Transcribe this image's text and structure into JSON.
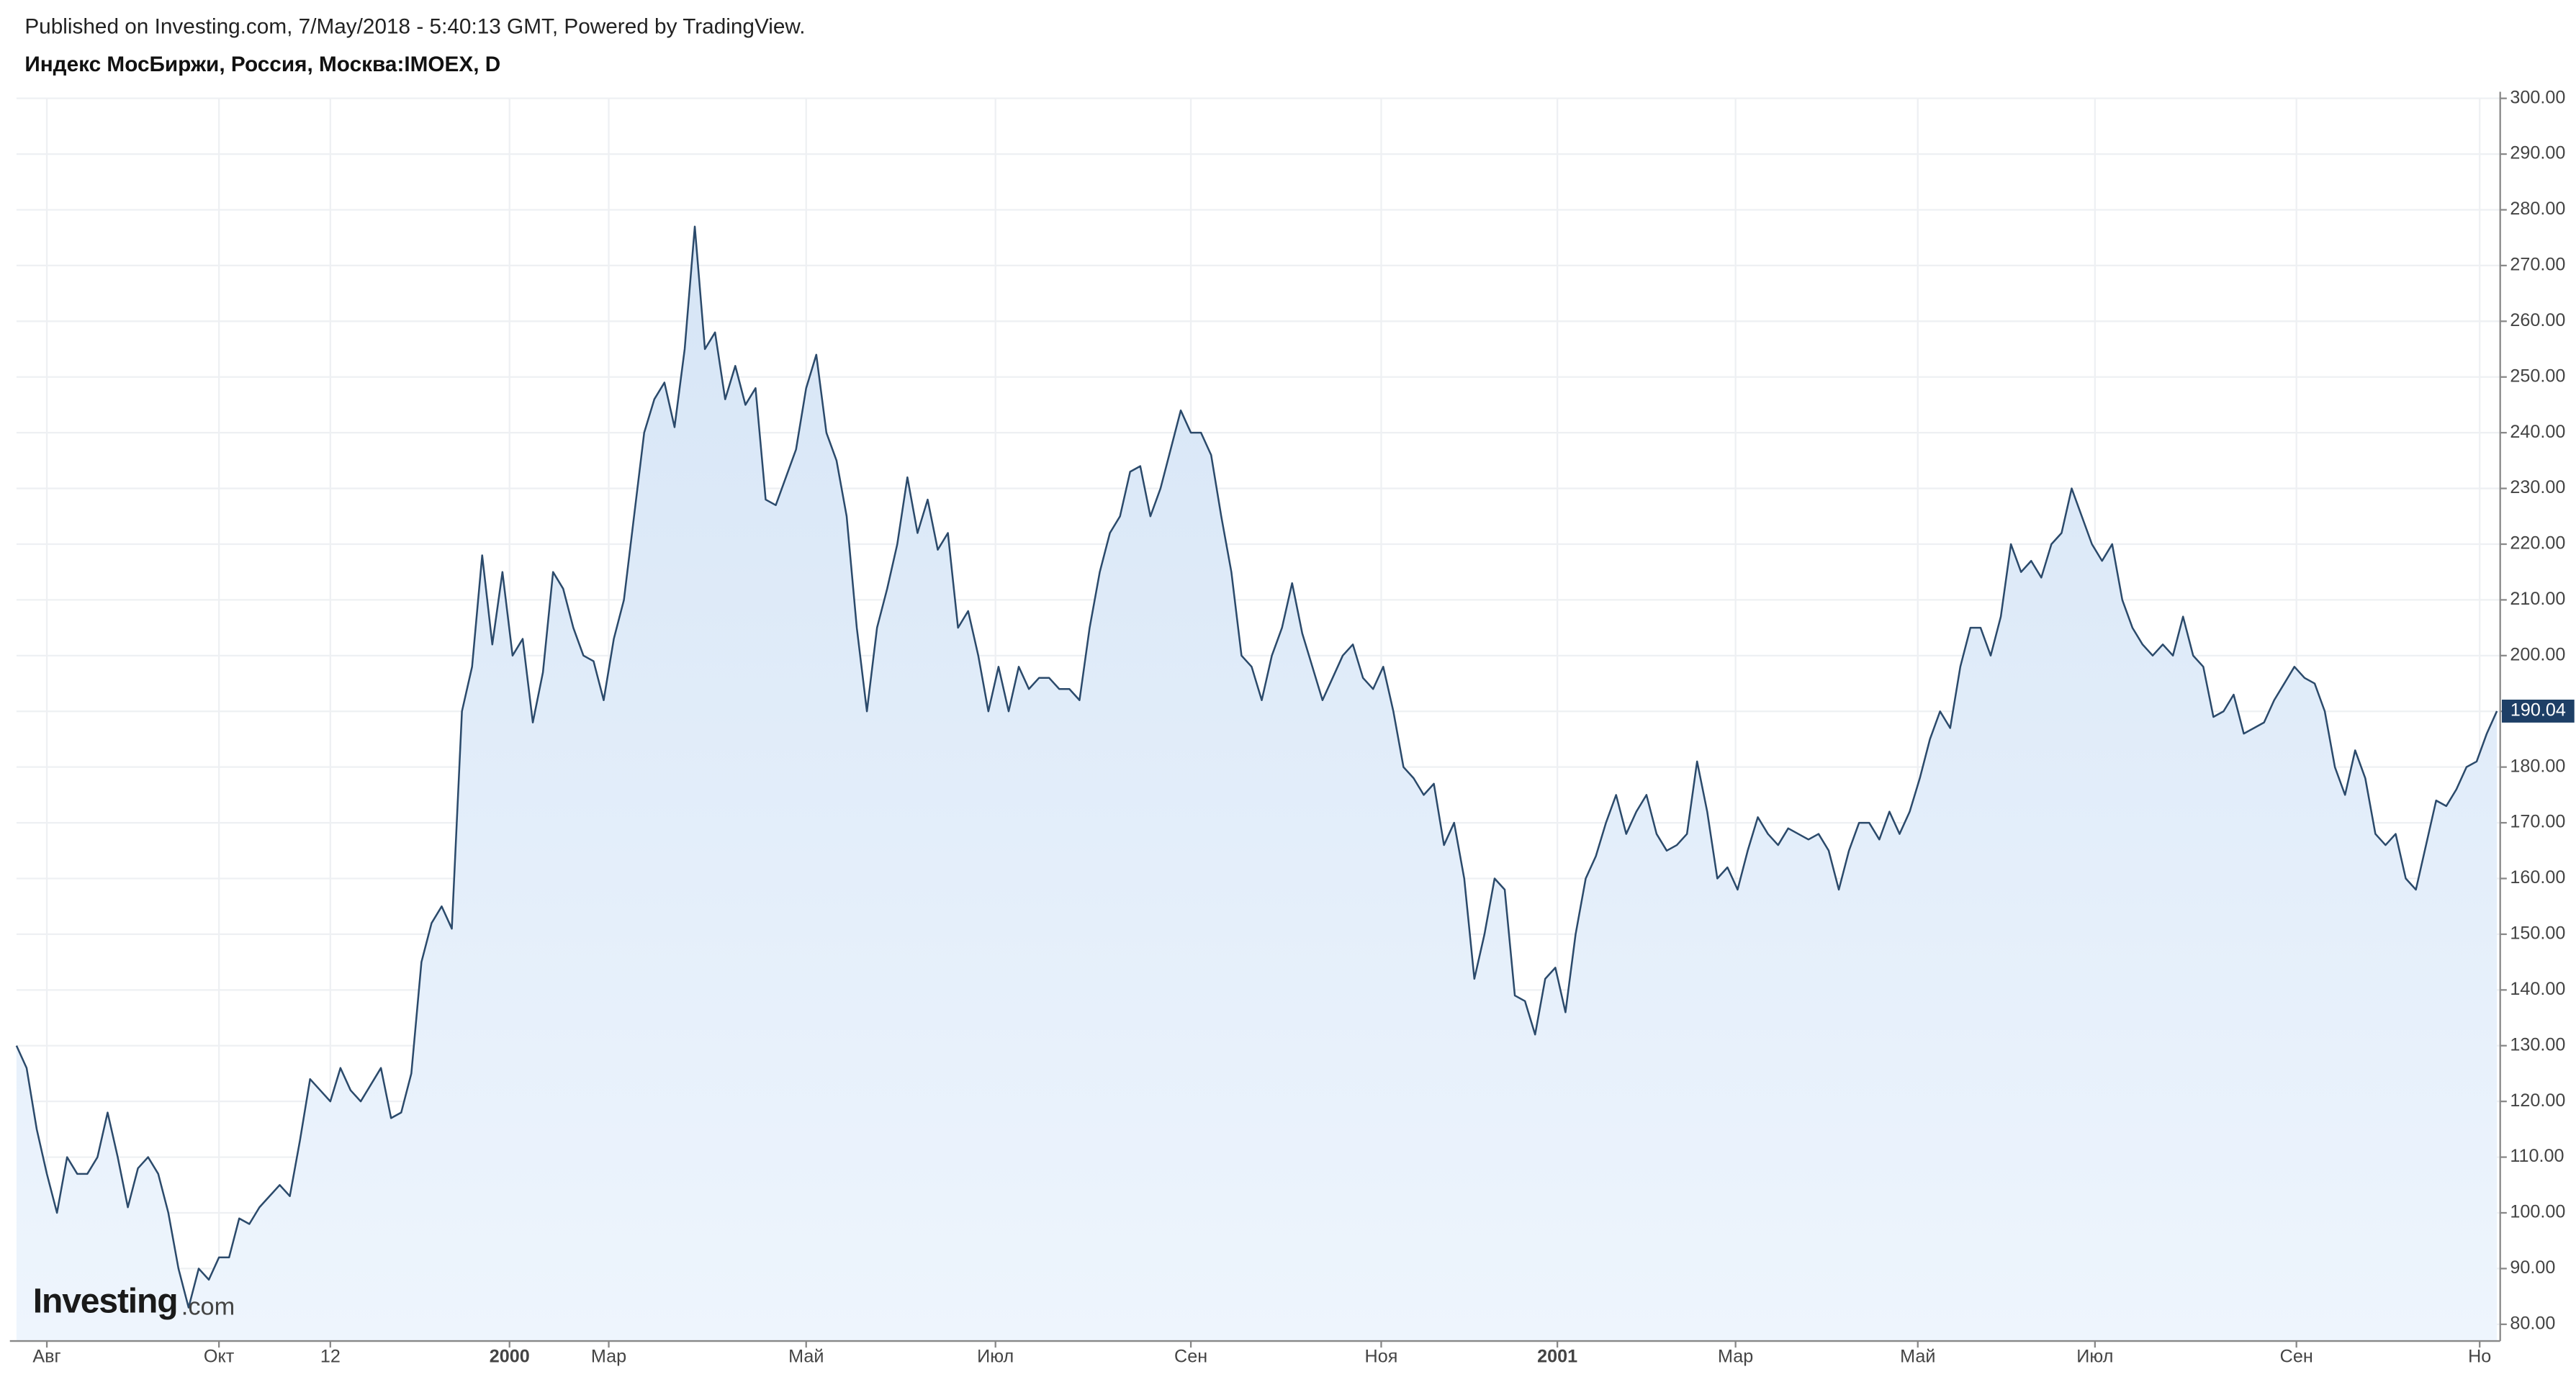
{
  "header": {
    "published": "Published on Investing.com, 7/May/2018 - 5:40:13 GMT, Powered by TradingView."
  },
  "logo": {
    "brand": "Investing",
    "suffix": ".com"
  },
  "chart_data": {
    "type": "line",
    "title": "Индекс МосБиржи, Россия, Москва:IMOEX, D",
    "color": "#2b4a6b",
    "fill": "#dbe8f7",
    "grid": true,
    "values": [
      130,
      126,
      115,
      107,
      100,
      110,
      107,
      107,
      110,
      118,
      110,
      101,
      108,
      110,
      107,
      100,
      90,
      83,
      90,
      88,
      92,
      92,
      99,
      98,
      101,
      103,
      105,
      103,
      113,
      124,
      122,
      120,
      126,
      122,
      120,
      123,
      126,
      117,
      118,
      125,
      145,
      152,
      155,
      151,
      190,
      198,
      218,
      202,
      215,
      200,
      203,
      188,
      197,
      215,
      212,
      205,
      200,
      199,
      192,
      203,
      210,
      225,
      240,
      246,
      249,
      241,
      255,
      277,
      255,
      258,
      246,
      252,
      245,
      248,
      228,
      227,
      232,
      237,
      248,
      254,
      240,
      235,
      225,
      205,
      190,
      205,
      212,
      220,
      232,
      222,
      228,
      219,
      222,
      205,
      208,
      200,
      190,
      198,
      190,
      198,
      194,
      196,
      196,
      194,
      194,
      192,
      205,
      215,
      222,
      225,
      233,
      234,
      225,
      230,
      237,
      244,
      240,
      240,
      236,
      225,
      215,
      200,
      198,
      192,
      200,
      205,
      213,
      204,
      198,
      192,
      196,
      200,
      202,
      196,
      194,
      198,
      190,
      180,
      178,
      175,
      177,
      166,
      170,
      160,
      142,
      150,
      160,
      158,
      139,
      138,
      132,
      142,
      144,
      136,
      150,
      160,
      164,
      170,
      175,
      168,
      172,
      175,
      168,
      165,
      166,
      168,
      181,
      172,
      160,
      162,
      158,
      165,
      171,
      168,
      166,
      169,
      168,
      167,
      168,
      165,
      158,
      165,
      170,
      170,
      167,
      172,
      168,
      172,
      178,
      185,
      190,
      187,
      198,
      205,
      205,
      200,
      207,
      220,
      215,
      217,
      214,
      220,
      222,
      230,
      225,
      220,
      217,
      220,
      210,
      205,
      202,
      200,
      202,
      200,
      207,
      200,
      198,
      189,
      190,
      193,
      186,
      187,
      188,
      192,
      195,
      198,
      196,
      195,
      190,
      180,
      175,
      183,
      178,
      168,
      166,
      168,
      160,
      158,
      166,
      174,
      173,
      176,
      180,
      181,
      186,
      190.04
    ],
    "xlim": [
      0,
      245
    ],
    "xticks": [
      {
        "value": 3,
        "label": "Авг"
      },
      {
        "value": 20,
        "label": "Окт"
      },
      {
        "value": 31,
        "label": "12"
      },
      {
        "value": 48.7,
        "label": "2000"
      },
      {
        "value": 58.5,
        "label": "Мар"
      },
      {
        "value": 78,
        "label": "Май"
      },
      {
        "value": 96.7,
        "label": "Июл"
      },
      {
        "value": 116,
        "label": "Сен"
      },
      {
        "value": 134.8,
        "label": "Ноя"
      },
      {
        "value": 152.2,
        "label": "2001"
      },
      {
        "value": 169.8,
        "label": "Мар"
      },
      {
        "value": 187.8,
        "label": "Май"
      },
      {
        "value": 205.3,
        "label": "Июл"
      },
      {
        "value": 225.2,
        "label": "Сен"
      },
      {
        "value": 243.3,
        "label": "Но"
      }
    ],
    "ylim": [
      77,
      300
    ],
    "yticks": [
      {
        "value": 80,
        "label": "80.00"
      },
      {
        "value": 90,
        "label": "90.00"
      },
      {
        "value": 100,
        "label": "100.00"
      },
      {
        "value": 110,
        "label": "110.00"
      },
      {
        "value": 120,
        "label": "120.00"
      },
      {
        "value": 130,
        "label": "130.00"
      },
      {
        "value": 140,
        "label": "140.00"
      },
      {
        "value": 150,
        "label": "150.00"
      },
      {
        "value": 160,
        "label": "160.00"
      },
      {
        "value": 170,
        "label": "170.00"
      },
      {
        "value": 180,
        "label": "180.00"
      },
      {
        "value": 190,
        "label": "190.00"
      },
      {
        "value": 200,
        "label": "200.00"
      },
      {
        "value": 210,
        "label": "210.00"
      },
      {
        "value": 220,
        "label": "220.00"
      },
      {
        "value": 230,
        "label": "230.00"
      },
      {
        "value": 240,
        "label": "240.00"
      },
      {
        "value": 250,
        "label": "250.00"
      },
      {
        "value": 260,
        "label": "260.00"
      },
      {
        "value": 270,
        "label": "270.00"
      },
      {
        "value": 280,
        "label": "280.00"
      },
      {
        "value": 290,
        "label": "290.00"
      },
      {
        "value": 300,
        "label": "300.00"
      }
    ]
  }
}
